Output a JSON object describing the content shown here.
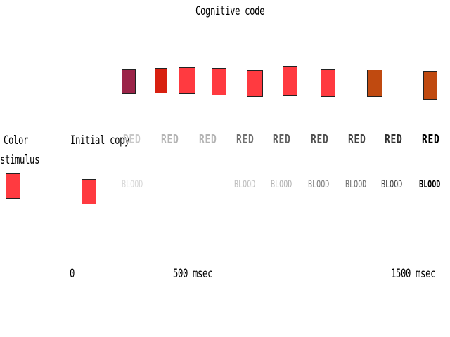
{
  "title": "Cognitive code",
  "labels": {
    "color_stimulus_line1": "Color",
    "color_stimulus_line2": "stimulus",
    "initial_copy": "Initial copy"
  },
  "stimulus_color": "#ff3a40",
  "initial_copy_color": "#ff3a40",
  "code_swatches": [
    {
      "color": "#9b2448"
    },
    {
      "color": "#d82010"
    },
    {
      "color": "#ff3a40"
    },
    {
      "color": "#ff3a40"
    },
    {
      "color": "#ff3a40"
    },
    {
      "color": "#ff3a40"
    },
    {
      "color": "#ff3a40"
    },
    {
      "color": "#c04a10"
    },
    {
      "color": "#c04a10"
    }
  ],
  "words": [
    {
      "red": "RED",
      "red_color": "#c8c8c8",
      "blood": "BLOOD",
      "blood_color": "#d8d8d8"
    },
    {
      "red": "RED",
      "red_color": "#b4b4b4",
      "blood": "",
      "blood_color": "#ffffff"
    },
    {
      "red": "RED",
      "red_color": "#b4b4b4",
      "blood": "",
      "blood_color": "#ffffff"
    },
    {
      "red": "RED",
      "red_color": "#707070",
      "blood": "BLOOD",
      "blood_color": "#c0c0c0"
    },
    {
      "red": "RED",
      "red_color": "#606060",
      "blood": "BLOOD",
      "blood_color": "#b4b4b4"
    },
    {
      "red": "RED",
      "red_color": "#505050",
      "blood": "BLOOD",
      "blood_color": "#808080"
    },
    {
      "red": "RED",
      "red_color": "#404040",
      "blood": "BLOOD",
      "blood_color": "#707070"
    },
    {
      "red": "RED",
      "red_color": "#303030",
      "blood": "BLOOD",
      "blood_color": "#404040"
    },
    {
      "red": "RED",
      "red_color": "#000000",
      "blood": "BLOOD",
      "blood_color": "#000000"
    }
  ],
  "timeline": {
    "t0": "0",
    "t1": "500 msec",
    "t2": "1500 msec"
  }
}
